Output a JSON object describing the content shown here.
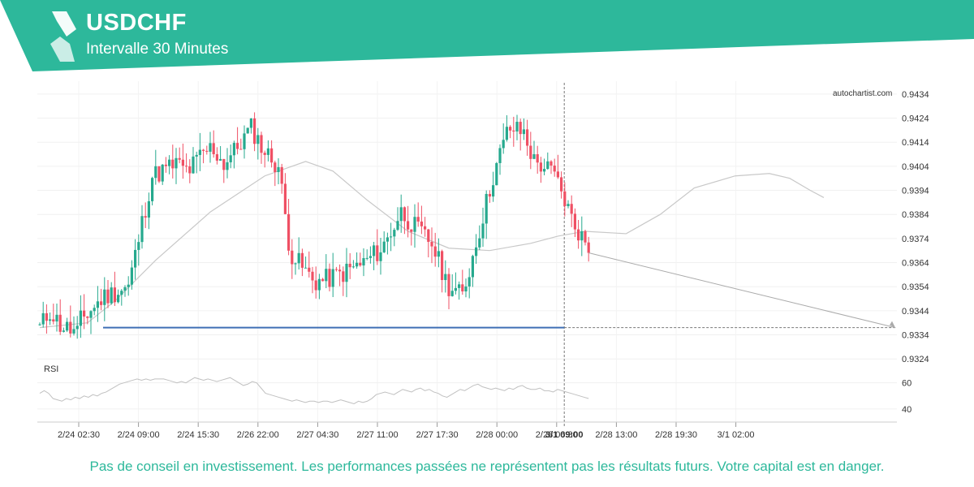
{
  "header": {
    "symbol": "USDCHF",
    "interval": "Intervalle 30 Minutes"
  },
  "watermark": "autochartist.com",
  "disclaimer": "Pas de conseil en investissement. Les performances passées ne représentent pas les résultats futurs. Votre capital est en danger.",
  "colors": {
    "brand": "#2db89b",
    "bull": "#26a98e",
    "bear": "#ef5064",
    "level": "#3f6fb5",
    "ma": "#c8c8c8",
    "rsi": "#c0c0c0"
  },
  "chart_data": {
    "type": "candlestick",
    "title": "USDCHF",
    "subtitle": "Intervalle 30 Minutes",
    "ylim": [
      0.9318,
      0.9438
    ],
    "y_ticks": [
      "0.9434",
      "0.9424",
      "0.9414",
      "0.9404",
      "0.9394",
      "0.9384",
      "0.9374",
      "0.9364",
      "0.9354",
      "0.9344",
      "0.9334",
      "0.9324"
    ],
    "x_ticks": [
      "2/24 02:30",
      "2/24 09:00",
      "2/24 15:30",
      "2/26 22:00",
      "2/27 04:30",
      "2/27 11:00",
      "2/27 17:30",
      "2/28 00:00",
      "2/28 06:30",
      "2/28 13:00",
      "2/28 19:30",
      "3/1 02:00"
    ],
    "current_time_label": "3/1 09:00",
    "support_level": 0.9337,
    "projected_target": 0.9337,
    "rsi": {
      "label": "RSI",
      "ticks": [
        "60",
        "40"
      ],
      "ylim": [
        35,
        66
      ]
    },
    "segments": [
      [
        0.9337,
        0.9344,
        0.9338,
        0.9336,
        0.9334
      ],
      [
        0.934,
        0.935,
        0.9354,
        0.94,
        0.9405
      ],
      [
        0.9405,
        0.9402,
        0.9408,
        0.9412,
        0.9405
      ],
      [
        0.9405,
        0.9412,
        0.942,
        0.941,
        0.9404
      ],
      [
        0.9404,
        0.9368,
        0.9362,
        0.9356,
        0.9357
      ],
      [
        0.9357,
        0.936,
        0.9364,
        0.937,
        0.9385
      ],
      [
        0.9385,
        0.9378,
        0.9372,
        0.9355,
        0.935
      ],
      [
        0.935,
        0.9375,
        0.94,
        0.942,
        0.9418
      ],
      [
        0.9418,
        0.9406,
        0.9404,
        0.94,
        0.939
      ],
      [
        0.939,
        0.938,
        0.9374,
        0.9368
      ]
    ],
    "segment_counts": [
      12,
      28,
      14,
      16,
      14,
      22,
      18,
      18,
      12,
      8
    ],
    "ma_points": [
      [
        0,
        0.9337
      ],
      [
        14,
        0.9339
      ],
      [
        22,
        0.9348
      ],
      [
        34,
        0.9365
      ],
      [
        50,
        0.9385
      ],
      [
        66,
        0.94
      ],
      [
        78,
        0.9406
      ],
      [
        86,
        0.9402
      ],
      [
        96,
        0.939
      ],
      [
        108,
        0.9377
      ],
      [
        120,
        0.937
      ],
      [
        132,
        0.9369
      ],
      [
        144,
        0.9372
      ],
      [
        152,
        0.9375
      ],
      [
        160,
        0.9377
      ],
      [
        172,
        0.9376
      ],
      [
        182,
        0.9384
      ],
      [
        192,
        0.9395
      ],
      [
        204,
        0.94
      ],
      [
        214,
        0.9401
      ],
      [
        220,
        0.9399
      ],
      [
        226,
        0.9394
      ],
      [
        230,
        0.9391
      ]
    ],
    "rsi_values": [
      52,
      54,
      52,
      48,
      47,
      46,
      48,
      47,
      49,
      48,
      50,
      49,
      51,
      50,
      52,
      53,
      55,
      57,
      59,
      60,
      61,
      62,
      63,
      62,
      63,
      62,
      63,
      63,
      63,
      62,
      61,
      60,
      61,
      60,
      62,
      64,
      63,
      62,
      63,
      62,
      61,
      62,
      63,
      64,
      62,
      60,
      58,
      59,
      61,
      60,
      56,
      52,
      51,
      50,
      49,
      48,
      47,
      46,
      47,
      46,
      45,
      46,
      46,
      45,
      46,
      46,
      45,
      46,
      47,
      46,
      45,
      44,
      46,
      45,
      46,
      48,
      51,
      52,
      53,
      52,
      51,
      53,
      55,
      54,
      53,
      55,
      56,
      54,
      55,
      53,
      52,
      50,
      49,
      51,
      53,
      55,
      54,
      56,
      58,
      59,
      57,
      56,
      55,
      56,
      55,
      54,
      56,
      55,
      57,
      58,
      56,
      55,
      55,
      56,
      54,
      54,
      53,
      55,
      54,
      53,
      52,
      51,
      50,
      49,
      48
    ]
  }
}
